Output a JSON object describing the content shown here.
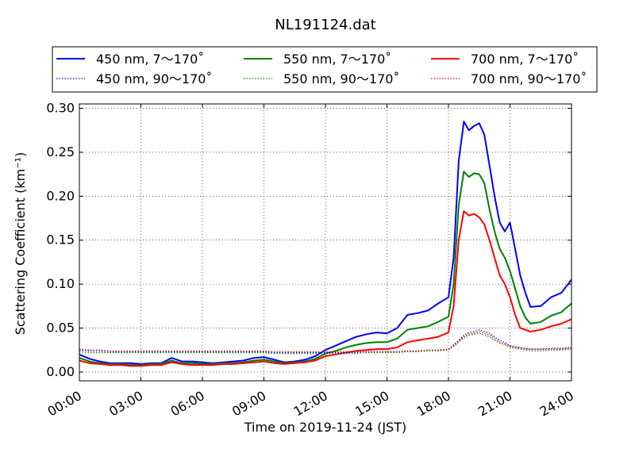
{
  "chart_data": {
    "type": "line",
    "title": "NL191124.dat",
    "xlabel": "Time on 2019-11-24 (JST)",
    "ylabel": "Scattering Coefficient (km⁻¹)",
    "xlim": [
      0,
      24
    ],
    "ylim": [
      -0.01,
      0.305
    ],
    "x_ticks": [
      0,
      3,
      6,
      9,
      12,
      15,
      18,
      21,
      24
    ],
    "x_tick_labels": [
      "00:00",
      "03:00",
      "06:00",
      "09:00",
      "12:00",
      "15:00",
      "18:00",
      "21:00",
      "24:00"
    ],
    "y_ticks": [
      0.0,
      0.05,
      0.1,
      0.15,
      0.2,
      0.25,
      0.3
    ],
    "y_tick_labels": [
      "0.00",
      "0.05",
      "0.10",
      "0.15",
      "0.20",
      "0.25",
      "0.30"
    ],
    "grid": true,
    "legend_position": "top, outside plot, 3 columns",
    "x": [
      0,
      0.5,
      1,
      1.5,
      2,
      2.5,
      3,
      3.5,
      4,
      4.5,
      5,
      5.5,
      6,
      6.5,
      7,
      7.5,
      8,
      8.5,
      9,
      9.5,
      10,
      10.5,
      11,
      11.5,
      12,
      12.5,
      13,
      13.5,
      14,
      14.5,
      15,
      15.5,
      16,
      16.5,
      17,
      17.5,
      18,
      18.25,
      18.5,
      18.75,
      19,
      19.25,
      19.5,
      19.75,
      20,
      20.25,
      20.5,
      20.75,
      21,
      21.25,
      21.5,
      21.75,
      22,
      22.5,
      23,
      23.5,
      24
    ],
    "series": [
      {
        "name": "450 nm, 7～170˚",
        "color": "#0000ff",
        "style": "solid",
        "values": [
          0.02,
          0.015,
          0.012,
          0.01,
          0.01,
          0.01,
          0.009,
          0.01,
          0.01,
          0.016,
          0.012,
          0.012,
          0.011,
          0.01,
          0.011,
          0.012,
          0.013,
          0.016,
          0.017,
          0.014,
          0.011,
          0.012,
          0.014,
          0.018,
          0.025,
          0.03,
          0.035,
          0.04,
          0.043,
          0.045,
          0.044,
          0.05,
          0.065,
          0.067,
          0.07,
          0.078,
          0.085,
          0.13,
          0.24,
          0.285,
          0.275,
          0.28,
          0.283,
          0.27,
          0.235,
          0.2,
          0.17,
          0.16,
          0.17,
          0.14,
          0.11,
          0.09,
          0.074,
          0.075,
          0.085,
          0.09,
          0.105
        ]
      },
      {
        "name": "550 nm, 7～170˚",
        "color": "#008000",
        "style": "solid",
        "values": [
          0.016,
          0.012,
          0.01,
          0.009,
          0.009,
          0.008,
          0.008,
          0.009,
          0.009,
          0.013,
          0.01,
          0.01,
          0.009,
          0.009,
          0.01,
          0.01,
          0.011,
          0.013,
          0.014,
          0.012,
          0.01,
          0.011,
          0.012,
          0.015,
          0.021,
          0.024,
          0.028,
          0.031,
          0.033,
          0.034,
          0.034,
          0.038,
          0.048,
          0.05,
          0.052,
          0.057,
          0.063,
          0.1,
          0.19,
          0.228,
          0.222,
          0.226,
          0.225,
          0.215,
          0.185,
          0.16,
          0.14,
          0.13,
          0.115,
          0.095,
          0.075,
          0.062,
          0.055,
          0.057,
          0.064,
          0.068,
          0.078
        ]
      },
      {
        "name": "700 nm, 7～170˚",
        "color": "#ff0000",
        "style": "solid",
        "values": [
          0.013,
          0.01,
          0.009,
          0.008,
          0.008,
          0.007,
          0.007,
          0.008,
          0.008,
          0.011,
          0.009,
          0.008,
          0.008,
          0.008,
          0.009,
          0.009,
          0.01,
          0.011,
          0.012,
          0.01,
          0.009,
          0.01,
          0.011,
          0.013,
          0.018,
          0.02,
          0.022,
          0.024,
          0.025,
          0.026,
          0.026,
          0.028,
          0.034,
          0.036,
          0.038,
          0.04,
          0.045,
          0.075,
          0.15,
          0.183,
          0.178,
          0.18,
          0.176,
          0.168,
          0.15,
          0.13,
          0.11,
          0.1,
          0.085,
          0.065,
          0.05,
          0.048,
          0.046,
          0.048,
          0.052,
          0.055,
          0.06
        ]
      },
      {
        "name": "450 nm, 90～170˚",
        "color": "#0000ff",
        "style": "dotted",
        "values": [
          0.025,
          0.024,
          0.024,
          0.023,
          0.023,
          0.023,
          0.023,
          0.023,
          0.023,
          0.023,
          0.023,
          0.023,
          0.023,
          0.023,
          0.023,
          0.023,
          0.023,
          0.023,
          0.023,
          0.022,
          0.022,
          0.022,
          0.022,
          0.022,
          0.022,
          0.022,
          0.022,
          0.022,
          0.023,
          0.023,
          0.023,
          0.023,
          0.024,
          0.024,
          0.025,
          0.025,
          0.026,
          0.031,
          0.036,
          0.042,
          0.045,
          0.046,
          0.048,
          0.046,
          0.044,
          0.04,
          0.036,
          0.034,
          0.03,
          0.029,
          0.028,
          0.027,
          0.026,
          0.026,
          0.027,
          0.027,
          0.028
        ]
      },
      {
        "name": "550 nm, 90～170˚",
        "color": "#008000",
        "style": "dotted",
        "values": [
          0.023,
          0.022,
          0.022,
          0.022,
          0.022,
          0.022,
          0.022,
          0.022,
          0.022,
          0.022,
          0.022,
          0.022,
          0.022,
          0.022,
          0.022,
          0.022,
          0.022,
          0.022,
          0.022,
          0.021,
          0.021,
          0.021,
          0.021,
          0.021,
          0.021,
          0.021,
          0.021,
          0.021,
          0.022,
          0.022,
          0.022,
          0.022,
          0.023,
          0.023,
          0.024,
          0.024,
          0.025,
          0.029,
          0.034,
          0.039,
          0.042,
          0.043,
          0.044,
          0.042,
          0.04,
          0.036,
          0.033,
          0.031,
          0.028,
          0.027,
          0.026,
          0.025,
          0.024,
          0.024,
          0.025,
          0.025,
          0.026
        ]
      },
      {
        "name": "700 nm, 90～170˚",
        "color": "#ff0000",
        "style": "dotted",
        "values": [
          0.026,
          0.025,
          0.025,
          0.024,
          0.024,
          0.024,
          0.024,
          0.024,
          0.024,
          0.024,
          0.024,
          0.024,
          0.024,
          0.024,
          0.024,
          0.024,
          0.024,
          0.024,
          0.024,
          0.023,
          0.023,
          0.023,
          0.023,
          0.023,
          0.023,
          0.023,
          0.023,
          0.023,
          0.023,
          0.023,
          0.023,
          0.023,
          0.024,
          0.024,
          0.025,
          0.025,
          0.026,
          0.03,
          0.035,
          0.04,
          0.043,
          0.044,
          0.046,
          0.044,
          0.042,
          0.038,
          0.034,
          0.032,
          0.029,
          0.028,
          0.027,
          0.026,
          0.026,
          0.026,
          0.026,
          0.026,
          0.027
        ]
      }
    ]
  }
}
